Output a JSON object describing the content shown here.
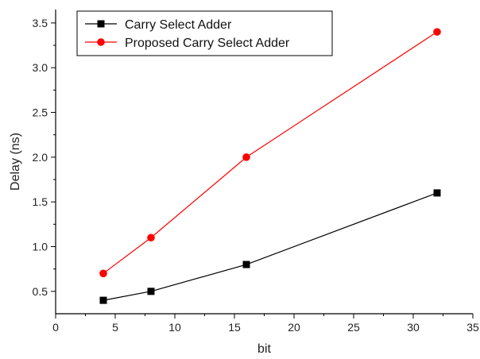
{
  "chart_data": {
    "type": "line",
    "title": "",
    "xlabel": "bit",
    "ylabel": "Delay (ns)",
    "xlim": [
      0,
      35
    ],
    "ylim": [
      0.25,
      3.65
    ],
    "xticks": [
      0,
      5,
      10,
      15,
      20,
      25,
      30,
      35
    ],
    "yticks": [
      0.5,
      1.0,
      1.5,
      2.0,
      2.5,
      3.0,
      3.5
    ],
    "ytick_labels": [
      "0.5",
      "1.0",
      "1.5",
      "2.0",
      "2.5",
      "3.0",
      "3.5"
    ],
    "grid": false,
    "legend_position": "top-left",
    "series": [
      {
        "name": "Carry Select Adder",
        "color": "#000000",
        "marker": "square",
        "x": [
          4,
          8,
          16,
          32
        ],
        "y": [
          0.4,
          0.5,
          0.8,
          1.6
        ]
      },
      {
        "name": "Proposed Carry Select Adder",
        "color": "#ff0000",
        "marker": "circle",
        "x": [
          4,
          8,
          16,
          32
        ],
        "y": [
          0.7,
          1.1,
          2.0,
          3.4
        ]
      }
    ]
  }
}
